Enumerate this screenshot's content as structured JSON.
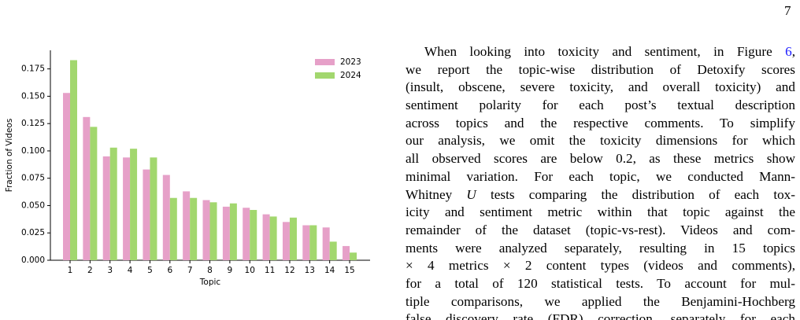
{
  "page_number": "7",
  "chart_data": {
    "type": "bar",
    "x_label": "Topic",
    "y_label": "Fraction of Videos",
    "categories": [
      "1",
      "2",
      "3",
      "4",
      "5",
      "6",
      "7",
      "8",
      "9",
      "10",
      "11",
      "12",
      "13",
      "14",
      "15"
    ],
    "series": [
      {
        "name": "2023",
        "color": "#e6a0c8",
        "values": [
          0.153,
          0.131,
          0.095,
          0.094,
          0.083,
          0.078,
          0.063,
          0.055,
          0.049,
          0.048,
          0.042,
          0.035,
          0.032,
          0.03,
          0.013
        ]
      },
      {
        "name": "2024",
        "color": "#a2d76e",
        "values": [
          0.183,
          0.122,
          0.103,
          0.102,
          0.094,
          0.057,
          0.057,
          0.053,
          0.052,
          0.046,
          0.04,
          0.039,
          0.032,
          0.017,
          0.007
        ]
      }
    ],
    "ylim": [
      0,
      0.192
    ],
    "yticks": [
      {
        "value": 0,
        "label": "0.000"
      },
      {
        "value": 0.025,
        "label": "0.025"
      },
      {
        "value": 0.05,
        "label": "0.050"
      },
      {
        "value": 0.075,
        "label": "0.075"
      },
      {
        "value": 0.1,
        "label": "0.100"
      },
      {
        "value": 0.125,
        "label": "0.125"
      },
      {
        "value": 0.15,
        "label": "0.150"
      },
      {
        "value": 0.175,
        "label": "0.175"
      }
    ],
    "legend": "upper right",
    "grid": false
  },
  "paragraph": {
    "lines": [
      [
        "When looking into toxicity and sentiment, in Figure ",
        {
          "text": "6",
          "style": "link"
        },
        ","
      ],
      [
        "we report the topic-wise distribution of Detoxify scores"
      ],
      [
        "(insult, obscene, severe toxicity, and overall toxicity) and"
      ],
      [
        "sentiment polarity for each post’s textual description"
      ],
      [
        "across topics and the respective comments. To simplify"
      ],
      [
        "our analysis, we omit the toxicity dimensions for which"
      ],
      [
        "all observed scores are below 0.2, as these metrics show"
      ],
      [
        "minimal variation. For each topic, we conducted Mann-"
      ],
      [
        "Whitney ",
        {
          "text": "U",
          "style": "italic"
        },
        " tests comparing the distribution of each tox-"
      ],
      [
        "icity and sentiment metric within that topic against the"
      ],
      [
        "remainder of the dataset (topic-vs-rest). Videos and com-"
      ],
      [
        "ments were analyzed separately, resulting in 15 topics"
      ],
      [
        "× 4 metrics × 2 content types (videos and comments),"
      ],
      [
        "for a total of 120 statistical tests. To account for mul-"
      ],
      [
        "tiple comparisons, we applied the Benjamini-Hochberg"
      ],
      [
        "false discovery rate (FDR) correction, separately for each"
      ]
    ]
  }
}
